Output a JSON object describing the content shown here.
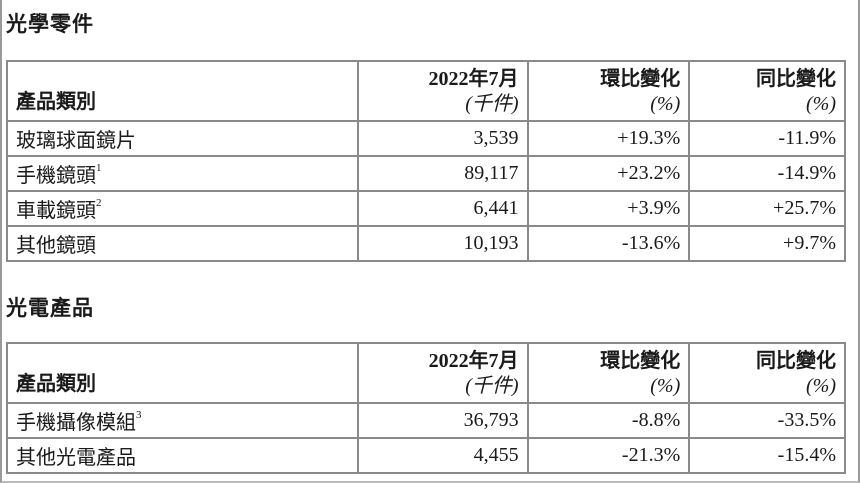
{
  "sections": [
    {
      "title": "光學零件",
      "headers": {
        "category": "產品類別",
        "volume": "2022年7月",
        "volume_unit": "(千件)",
        "mom": "環比變化",
        "mom_unit": "(%)",
        "yoy": "同比變化",
        "yoy_unit": "(%)"
      },
      "rows": [
        {
          "category": "玻璃球面鏡片",
          "note": "",
          "volume": "3,539",
          "mom": "+19.3%",
          "yoy": "-11.9%"
        },
        {
          "category": "手機鏡頭",
          "note": "1",
          "volume": "89,117",
          "mom": "+23.2%",
          "yoy": "-14.9%"
        },
        {
          "category": "車載鏡頭",
          "note": "2",
          "volume": "6,441",
          "mom": "+3.9%",
          "yoy": "+25.7%"
        },
        {
          "category": "其他鏡頭",
          "note": "",
          "volume": "10,193",
          "mom": "-13.6%",
          "yoy": "+9.7%"
        }
      ]
    },
    {
      "title": "光電產品",
      "headers": {
        "category": "產品類別",
        "volume": "2022年7月",
        "volume_unit": "(千件)",
        "mom": "環比變化",
        "mom_unit": "(%)",
        "yoy": "同比變化",
        "yoy_unit": "(%)"
      },
      "rows": [
        {
          "category": "手機攝像模組",
          "note": "3",
          "volume": "36,793",
          "mom": "-8.8%",
          "yoy": "-33.5%"
        },
        {
          "category": "其他光電產品",
          "note": "",
          "volume": "4,455",
          "mom": "-21.3%",
          "yoy": "-15.4%"
        }
      ]
    }
  ]
}
